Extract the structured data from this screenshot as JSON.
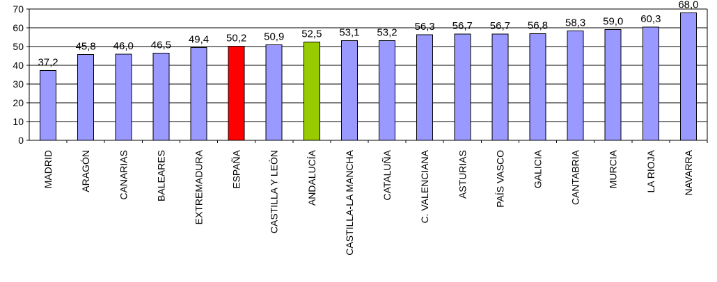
{
  "chart_data": {
    "type": "bar",
    "title": "",
    "xlabel": "",
    "ylabel": "",
    "ylim": [
      0,
      70
    ],
    "yticks": [
      0,
      10,
      20,
      30,
      40,
      50,
      60,
      70
    ],
    "grid": "horizontal",
    "legend": "none",
    "categories": [
      "MADRID",
      "ARAGÓN",
      "CANARIAS",
      "BALEARES",
      "EXTREMADURA",
      "ESPAÑA",
      "CASTILLA Y LEÓN",
      "ANDALUCÍA",
      "CASTILLA-LA MANCHA",
      "CATALUÑA",
      "C. VALENCIANA",
      "ASTURIAS",
      "PAÍS VASCO",
      "GALICIA",
      "CANTABRIA",
      "MURCIA",
      "LA RIOJA",
      "NAVARRA"
    ],
    "values": [
      37.2,
      45.8,
      46.0,
      46.5,
      49.4,
      50.2,
      50.9,
      52.5,
      53.1,
      53.2,
      56.3,
      56.7,
      56.7,
      56.8,
      58.3,
      59.0,
      60.3,
      68.0
    ],
    "value_labels": [
      "37,2",
      "45,8",
      "46,0",
      "46,5",
      "49,4",
      "50,2",
      "50,9",
      "52,5",
      "53,1",
      "53,2",
      "56,3",
      "56,7",
      "56,7",
      "56,8",
      "58,3",
      "59,0",
      "60,3",
      "68,0"
    ],
    "tick_labels": [
      "0",
      "10",
      "20",
      "30",
      "40",
      "50",
      "60",
      "70"
    ],
    "colors": {
      "default_bar": "#9999ff",
      "highlight_espana": "#ff0000",
      "highlight_andalucia": "#99cc00",
      "bar_stroke": "#000000",
      "grid": "#000000"
    },
    "bar_colors": [
      "#9999ff",
      "#9999ff",
      "#9999ff",
      "#9999ff",
      "#9999ff",
      "#ff0000",
      "#9999ff",
      "#99cc00",
      "#9999ff",
      "#9999ff",
      "#9999ff",
      "#9999ff",
      "#9999ff",
      "#9999ff",
      "#9999ff",
      "#9999ff",
      "#9999ff",
      "#9999ff"
    ]
  }
}
